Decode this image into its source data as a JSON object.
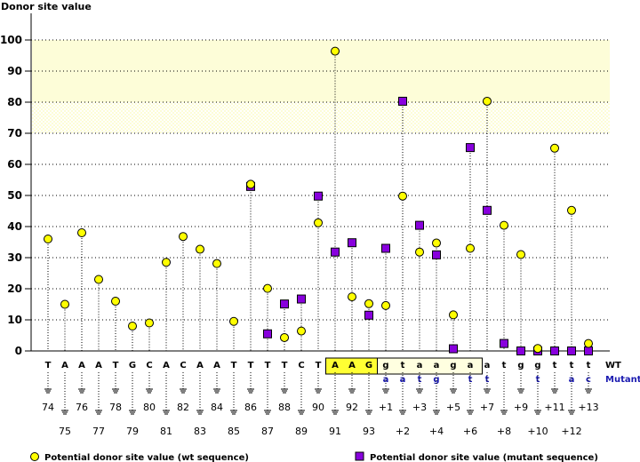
{
  "chart_data": {
    "type": "scatter",
    "title": "",
    "ylabel": "Donor site value",
    "xlabel": "",
    "ylim": [
      0,
      100
    ],
    "yticks": [
      0,
      10,
      20,
      30,
      40,
      50,
      60,
      70,
      80,
      90,
      100
    ],
    "grid": true,
    "highlight_bands": [
      {
        "from": 80,
        "to": 100,
        "color": "#fdfdd8",
        "style": "solid"
      },
      {
        "from": 70,
        "to": 80,
        "color": "#fefee8",
        "style": "checkered"
      }
    ],
    "row_labels": {
      "wt": "WT",
      "mutant": "Mutant"
    },
    "positions": [
      {
        "pos": "74",
        "wt": "T",
        "mut": "",
        "wt_value": 36,
        "mut_value": null
      },
      {
        "pos": "75",
        "wt": "A",
        "mut": "",
        "wt_value": 15,
        "mut_value": null
      },
      {
        "pos": "76",
        "wt": "A",
        "mut": "",
        "wt_value": 38,
        "mut_value": null
      },
      {
        "pos": "77",
        "wt": "A",
        "mut": "",
        "wt_value": 23,
        "mut_value": null
      },
      {
        "pos": "78",
        "wt": "T",
        "mut": "",
        "wt_value": 16,
        "mut_value": null
      },
      {
        "pos": "79",
        "wt": "G",
        "mut": "",
        "wt_value": 8,
        "mut_value": null
      },
      {
        "pos": "80",
        "wt": "C",
        "mut": "",
        "wt_value": 9,
        "mut_value": null
      },
      {
        "pos": "81",
        "wt": "A",
        "mut": "",
        "wt_value": 28.5,
        "mut_value": null
      },
      {
        "pos": "82",
        "wt": "C",
        "mut": "",
        "wt_value": 36.8,
        "mut_value": null
      },
      {
        "pos": "83",
        "wt": "A",
        "mut": "",
        "wt_value": 32.7,
        "mut_value": null
      },
      {
        "pos": "84",
        "wt": "A",
        "mut": "",
        "wt_value": 28.1,
        "mut_value": null
      },
      {
        "pos": "85",
        "wt": "T",
        "mut": "",
        "wt_value": 9.5,
        "mut_value": null
      },
      {
        "pos": "86",
        "wt": "T",
        "mut": "",
        "wt_value": 53.6,
        "mut_value": 52.9
      },
      {
        "pos": "87",
        "wt": "T",
        "mut": "",
        "wt_value": 20.1,
        "mut_value": 5.5
      },
      {
        "pos": "88",
        "wt": "T",
        "mut": "",
        "wt_value": 4.3,
        "mut_value": 15.1
      },
      {
        "pos": "89",
        "wt": "C",
        "mut": "",
        "wt_value": 6.4,
        "mut_value": 16.7
      },
      {
        "pos": "90",
        "wt": "T",
        "mut": "",
        "wt_value": 41.2,
        "mut_value": 49.8
      },
      {
        "pos": "91",
        "wt": "A",
        "mut": "",
        "wt_value": 96.4,
        "mut_value": 31.8,
        "region": "exon"
      },
      {
        "pos": "92",
        "wt": "A",
        "mut": "",
        "wt_value": 17.4,
        "mut_value": 34.8,
        "region": "exon"
      },
      {
        "pos": "93",
        "wt": "G",
        "mut": "",
        "wt_value": 15.2,
        "mut_value": 11.5,
        "region": "exon"
      },
      {
        "pos": "+1",
        "wt": "g",
        "mut": "a",
        "wt_value": 14.6,
        "mut_value": 33,
        "region": "intron"
      },
      {
        "pos": "+2",
        "wt": "t",
        "mut": "a",
        "wt_value": 49.8,
        "mut_value": 80.3,
        "region": "intron"
      },
      {
        "pos": "+3",
        "wt": "a",
        "mut": "t",
        "wt_value": 31.8,
        "mut_value": 40.4,
        "region": "intron"
      },
      {
        "pos": "+4",
        "wt": "a",
        "mut": "g",
        "wt_value": 34.7,
        "mut_value": 30.9,
        "region": "intron"
      },
      {
        "pos": "+5",
        "wt": "g",
        "mut": "",
        "wt_value": 11.6,
        "mut_value": 0.7,
        "region": "intron"
      },
      {
        "pos": "+6",
        "wt": "a",
        "mut": "t",
        "wt_value": 33,
        "mut_value": 65.4,
        "region": "intron"
      },
      {
        "pos": "+7",
        "wt": "a",
        "mut": "t",
        "wt_value": 80.3,
        "mut_value": 45.2
      },
      {
        "pos": "+8",
        "wt": "t",
        "mut": "",
        "wt_value": 40.4,
        "mut_value": 2.4
      },
      {
        "pos": "+9",
        "wt": "g",
        "mut": "",
        "wt_value": 31,
        "mut_value": 0
      },
      {
        "pos": "+10",
        "wt": "g",
        "mut": "t",
        "wt_value": 0.8,
        "mut_value": 0
      },
      {
        "pos": "+11",
        "wt": "t",
        "mut": "",
        "wt_value": 65.2,
        "mut_value": 0
      },
      {
        "pos": "+12",
        "wt": "t",
        "mut": "a",
        "wt_value": 45.2,
        "mut_value": 0
      },
      {
        "pos": "+13",
        "wt": "t",
        "mut": "c",
        "wt_value": 2.4,
        "mut_value": 0
      }
    ],
    "series": [
      {
        "name": "Potential donor site value (wt sequence)",
        "marker": "circle",
        "color": "#ffff00",
        "key": "wt_value"
      },
      {
        "name": "Potential donor site value (mutant sequence)",
        "marker": "square",
        "color": "#8800dd",
        "key": "mut_value"
      }
    ],
    "legend_position": "bottom"
  },
  "colors": {
    "exon_box": "#ffff33",
    "intron_box": "#ffffe0",
    "mutant_text": "#1a1ab0"
  }
}
